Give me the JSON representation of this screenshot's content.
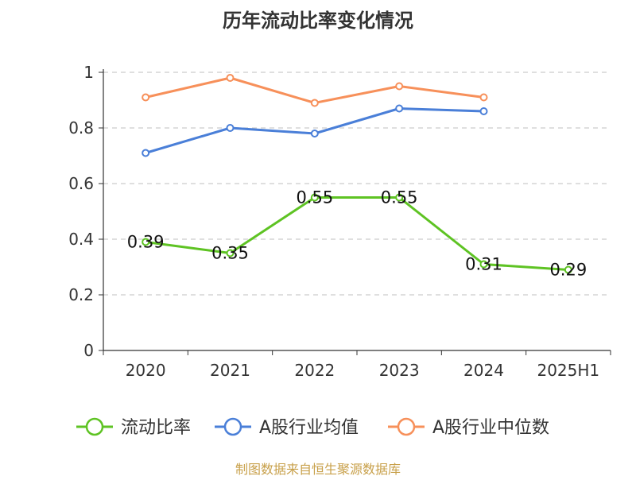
{
  "chart_data": {
    "type": "line",
    "title": "历年流动比率变化情况",
    "categories": [
      "2020",
      "2021",
      "2022",
      "2023",
      "2024",
      "2025H1"
    ],
    "y_ticks": [
      "0",
      "0.2",
      "0.4",
      "0.6",
      "0.8",
      "1"
    ],
    "ylim": [
      0,
      1
    ],
    "grid": true,
    "legend_position": "bottom",
    "series": [
      {
        "name": "流动比率",
        "color": "#5ec323",
        "values": [
          0.39,
          0.35,
          0.55,
          0.55,
          0.31,
          0.29
        ],
        "labels": [
          "0.39",
          "0.35",
          "0.55",
          "0.55",
          "0.31",
          "0.29"
        ],
        "show_labels": true
      },
      {
        "name": "A股行业均值",
        "color": "#4a7fd8",
        "values": [
          0.71,
          0.8,
          0.78,
          0.87,
          0.86,
          null
        ],
        "show_labels": false
      },
      {
        "name": "A股行业中位数",
        "color": "#f7905a",
        "values": [
          0.91,
          0.98,
          0.89,
          0.95,
          0.91,
          null
        ],
        "show_labels": false
      }
    ]
  },
  "source_text": "制图数据来自恒生聚源数据库"
}
